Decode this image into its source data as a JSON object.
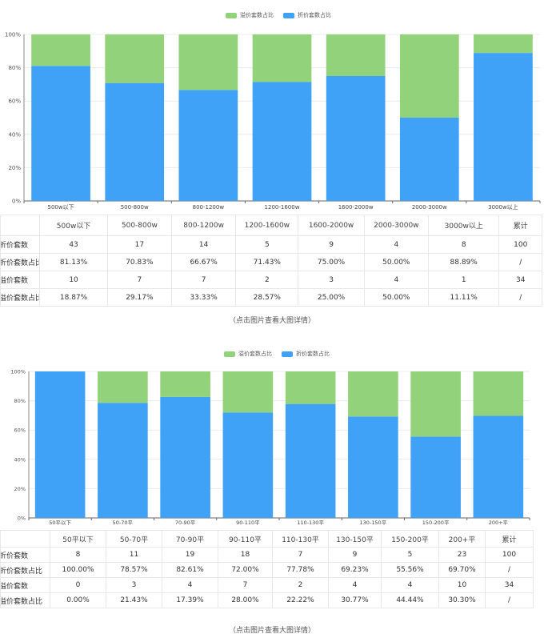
{
  "colors": {
    "over": "#91d27a",
    "under": "#3fa2f6"
  },
  "charts": [
    {
      "legend": {
        "over": "溢价套数占比",
        "under": "折价套数占比"
      },
      "caption": "（点击图片查看大图详情）",
      "table": {
        "headers": [
          "",
          "500w以下",
          "500-800w",
          "800-1200w",
          "1200-1600w",
          "1600-2000w",
          "2000-3000w",
          "3000w以上",
          "累计"
        ],
        "rows": [
          [
            "折价套数",
            "43",
            "17",
            "14",
            "5",
            "9",
            "4",
            "8",
            "100"
          ],
          [
            "折价套数占比",
            "81.13%",
            "70.83%",
            "66.67%",
            "71.43%",
            "75.00%",
            "50.00%",
            "88.89%",
            "/"
          ],
          [
            "溢价套数",
            "10",
            "7",
            "7",
            "2",
            "3",
            "4",
            "1",
            "34"
          ],
          [
            "溢价套数占比",
            "18.87%",
            "29.17%",
            "33.33%",
            "28.57%",
            "25.00%",
            "50.00%",
            "11.11%",
            "/"
          ]
        ]
      }
    },
    {
      "legend": {
        "over": "溢价套数占比",
        "under": "折价套数占比"
      },
      "caption": "（点击图片查看大图详情）",
      "table": {
        "headers": [
          "",
          "50平以下",
          "50-70平",
          "70-90平",
          "90-110平",
          "110-130平",
          "130-150平",
          "150-200平",
          "200+平",
          "累计"
        ],
        "rows": [
          [
            "折价套数",
            "8",
            "11",
            "19",
            "18",
            "7",
            "9",
            "5",
            "23",
            "100"
          ],
          [
            "折价套数占比",
            "100.00%",
            "78.57%",
            "82.61%",
            "72.00%",
            "77.78%",
            "69.23%",
            "55.56%",
            "69.70%",
            "/"
          ],
          [
            "溢价套数",
            "0",
            "3",
            "4",
            "7",
            "2",
            "4",
            "4",
            "10",
            "34"
          ],
          [
            "溢价套数占比",
            "0.00%",
            "21.43%",
            "17.39%",
            "28.00%",
            "22.22%",
            "30.77%",
            "44.44%",
            "30.30%",
            "/"
          ]
        ]
      }
    }
  ],
  "chart_data": [
    {
      "type": "bar",
      "stacked": true,
      "categories": [
        "500w以下",
        "500-800w",
        "800-1200w",
        "1200-1600w",
        "1600-2000w",
        "2000-3000w",
        "3000w以上"
      ],
      "series": [
        {
          "name": "折价套数占比",
          "values": [
            81.13,
            70.83,
            66.67,
            71.43,
            75.0,
            50.0,
            88.89
          ]
        },
        {
          "name": "溢价套数占比",
          "values": [
            18.87,
            29.17,
            33.33,
            28.57,
            25.0,
            50.0,
            11.11
          ]
        }
      ],
      "yticks": [
        "0%",
        "20%",
        "40%",
        "60%",
        "80%",
        "100%"
      ],
      "ylim": [
        0,
        100
      ],
      "grid": true,
      "legend_position": "top-center"
    },
    {
      "type": "bar",
      "stacked": true,
      "categories": [
        "50平以下",
        "50-70平",
        "70-90平",
        "90-110平",
        "110-130平",
        "130-150平",
        "150-200平",
        "200+平"
      ],
      "series": [
        {
          "name": "折价套数占比",
          "values": [
            100.0,
            78.57,
            82.61,
            72.0,
            77.78,
            69.23,
            55.56,
            69.7
          ]
        },
        {
          "name": "溢价套数占比",
          "values": [
            0.0,
            21.43,
            17.39,
            28.0,
            22.22,
            30.77,
            44.44,
            30.3
          ]
        }
      ],
      "yticks": [
        "0%",
        "20%",
        "40%",
        "60%",
        "80%",
        "100%"
      ],
      "ylim": [
        0,
        100
      ],
      "grid": true,
      "legend_position": "top-center"
    }
  ]
}
